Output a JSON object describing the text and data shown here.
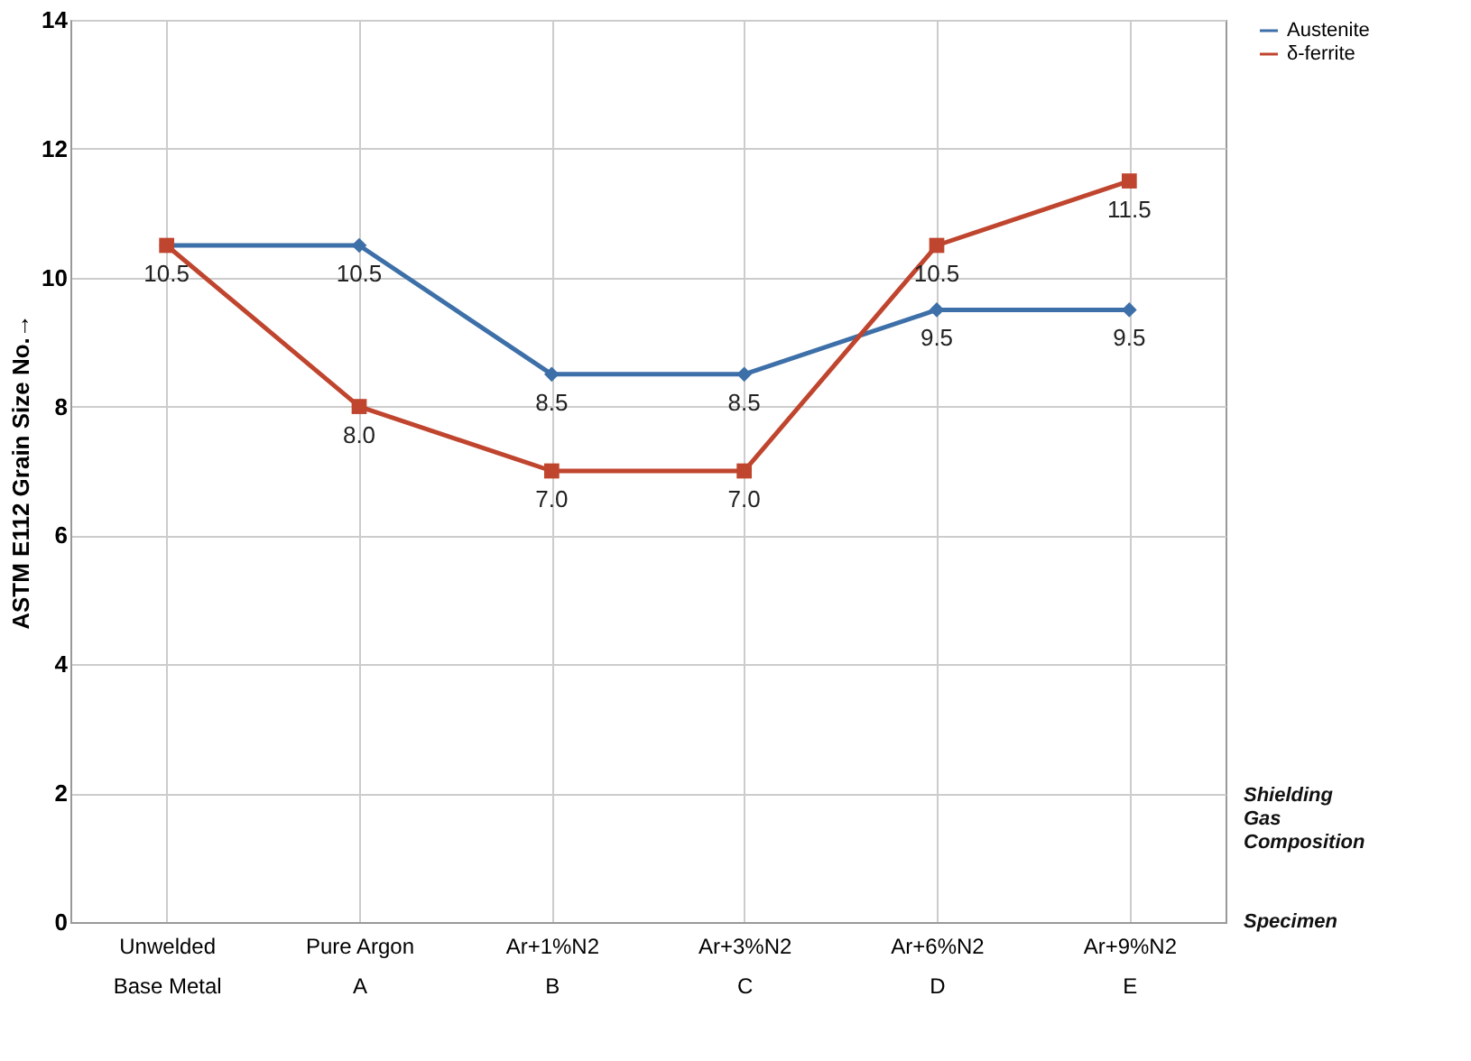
{
  "chart_data": {
    "type": "line",
    "ylabel": "ASTM E112 Grain Size No.→",
    "categories": [
      "Unwelded\nBase Metal",
      "Pure Argon\nA",
      "Ar+1%N2\nB",
      "Ar+3%N2\nC",
      "Ar+6%N2\nD",
      "Ar+9%N2\nE"
    ],
    "series": [
      {
        "name": "Austenite",
        "color": "#3d6fa8",
        "marker": "diamond",
        "values": [
          10.5,
          10.5,
          8.5,
          8.5,
          9.5,
          9.5
        ],
        "value_labels": [
          null,
          "10.5",
          "8.5",
          "8.5",
          "9.5",
          "9.5"
        ]
      },
      {
        "name": "δ-ferrite",
        "color": "#c0452e",
        "marker": "square",
        "values": [
          10.5,
          8.0,
          7.0,
          7.0,
          10.5,
          11.5
        ],
        "value_labels": [
          "10.5",
          "8.0",
          "7.0",
          "7.0",
          "10.5",
          "11.5"
        ]
      }
    ],
    "ylim": [
      0,
      14
    ],
    "yticks": [
      0,
      2,
      4,
      6,
      8,
      10,
      12,
      14
    ],
    "grid": true,
    "legend": "right",
    "line_style": "solid",
    "annotations": [
      "Shielding Gas Composition",
      "Specimen"
    ]
  }
}
